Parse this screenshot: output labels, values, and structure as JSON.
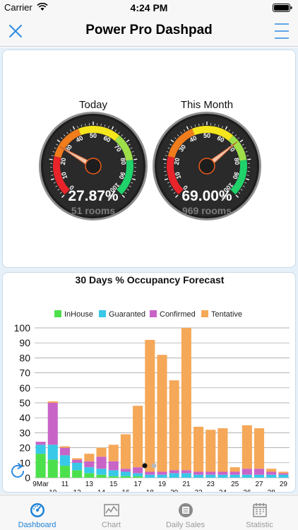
{
  "status_bar": {
    "carrier": "Carrier",
    "time": "4:24 PM"
  },
  "nav": {
    "title": "Power Pro Dashpad"
  },
  "gauges": [
    {
      "title": "Today",
      "value_label": "27.87%",
      "rooms_label": "51 rooms",
      "value": 27.87
    },
    {
      "title": "This Month",
      "value_label": "69.00%",
      "rooms_label": "969 rooms",
      "value": 69.0
    }
  ],
  "gauge_scale": {
    "ticks": [
      "0",
      "10",
      "20",
      "30",
      "40",
      "50",
      "60",
      "70",
      "80",
      "90",
      "100"
    ],
    "unit": "%"
  },
  "chart_data": {
    "type": "bar",
    "stacked": true,
    "title": "30 Days % Occupancy Forecast",
    "legend_position": "top",
    "grid": true,
    "ylim": [
      0,
      100
    ],
    "yticks": [
      0,
      10,
      20,
      30,
      40,
      50,
      60,
      70,
      80,
      90,
      100
    ],
    "categories": [
      "9Mar",
      "10",
      "11",
      "12",
      "13",
      "14",
      "15",
      "16",
      "17",
      "18",
      "19",
      "20",
      "21",
      "22",
      "23",
      "24",
      "25",
      "26",
      "27",
      "28",
      "29"
    ],
    "series": [
      {
        "name": "InHouse",
        "color": "#4de04d",
        "values": [
          16,
          12,
          8,
          5,
          3,
          2,
          1,
          1,
          1,
          0,
          0,
          0,
          0,
          0,
          0,
          0,
          0,
          0,
          0,
          0,
          0
        ]
      },
      {
        "name": "Guaranted",
        "color": "#38c8e8",
        "values": [
          6,
          10,
          7,
          5,
          4,
          4,
          4,
          3,
          2,
          2,
          2,
          3,
          3,
          2,
          2,
          2,
          2,
          2,
          2,
          2,
          2
        ]
      },
      {
        "name": "Confirmed",
        "color": "#c864c8",
        "values": [
          2,
          28,
          5,
          2,
          4,
          8,
          6,
          2,
          4,
          2,
          2,
          2,
          2,
          2,
          2,
          2,
          2,
          4,
          4,
          2,
          1
        ]
      },
      {
        "name": "Tentative",
        "color": "#f5a858",
        "values": [
          0,
          1,
          1,
          1,
          5,
          6,
          11,
          23,
          41,
          88,
          78,
          60,
          95,
          30,
          28,
          29,
          3,
          29,
          27,
          2,
          1
        ]
      }
    ]
  },
  "tabs": [
    {
      "label": "Dashboard"
    },
    {
      "label": "Chart"
    },
    {
      "label": "Daily Sales"
    },
    {
      "label": "Statistic"
    }
  ]
}
